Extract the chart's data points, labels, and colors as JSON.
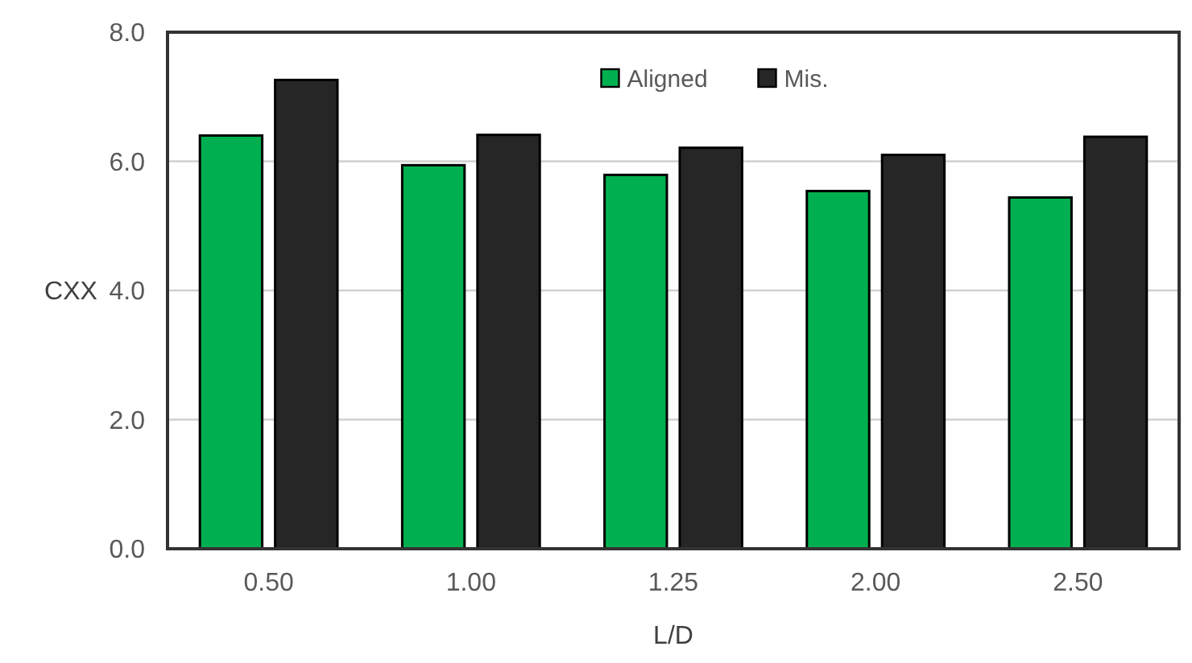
{
  "chart_data": {
    "type": "bar",
    "xlabel": "L/D",
    "ylabel": "CXX",
    "categories": [
      "0.50",
      "1.00",
      "1.25",
      "2.00",
      "2.50"
    ],
    "series": [
      {
        "name": "Aligned",
        "color": "#00b050",
        "values": [
          6.4,
          5.94,
          5.79,
          5.54,
          5.44
        ]
      },
      {
        "name": "Mis.",
        "color": "#262626",
        "values": [
          7.26,
          6.41,
          6.21,
          6.1,
          6.38
        ]
      }
    ],
    "ylim": [
      0,
      8
    ],
    "yticks": [
      {
        "value": 0,
        "label": "0.0"
      },
      {
        "value": 2,
        "label": "2.0"
      },
      {
        "value": 4,
        "label": "4.0"
      },
      {
        "value": 6,
        "label": "6.0"
      },
      {
        "value": 8,
        "label": "8.0"
      }
    ],
    "grid": "y",
    "legend": "top"
  }
}
